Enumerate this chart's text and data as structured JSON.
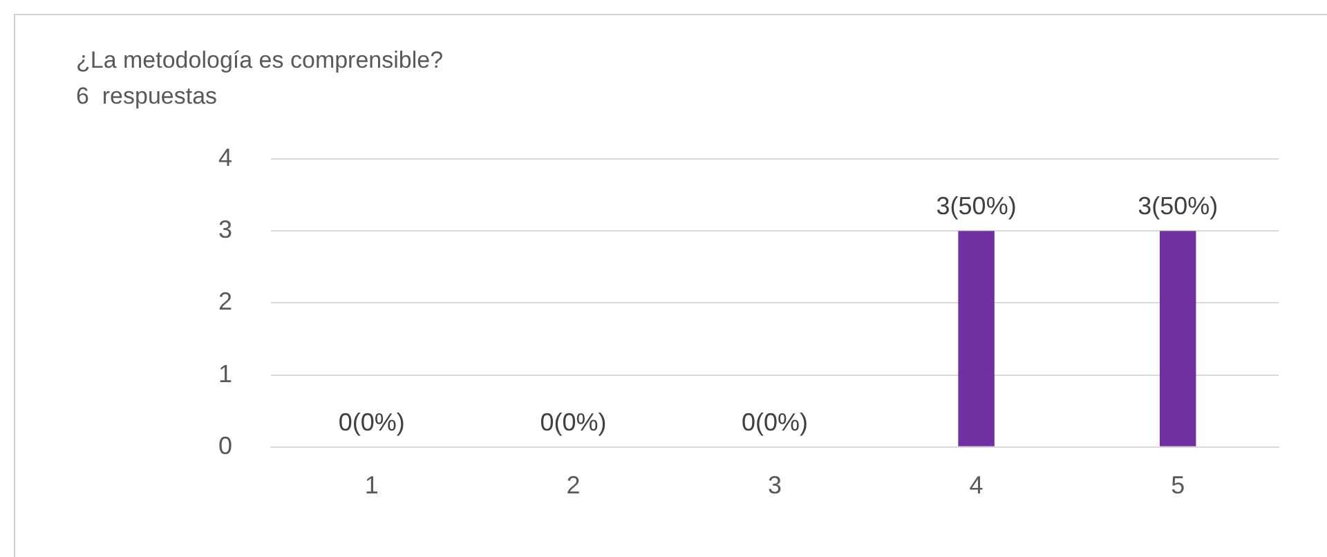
{
  "chart_data": {
    "type": "bar",
    "title": "¿La metodología es comprensible?",
    "subtitle": "6  respuestas",
    "categories": [
      "1",
      "2",
      "3",
      "4",
      "5"
    ],
    "values": [
      0,
      0,
      0,
      3,
      3
    ],
    "value_labels": [
      "0(0%)",
      "0(0%)",
      "0(0%)",
      "3(50%)",
      "3(50%)"
    ],
    "color": "#7030a0",
    "ylim": [
      0,
      4
    ],
    "yticks": [
      0,
      1,
      2,
      3,
      4
    ],
    "grid": "y",
    "legend": false
  }
}
